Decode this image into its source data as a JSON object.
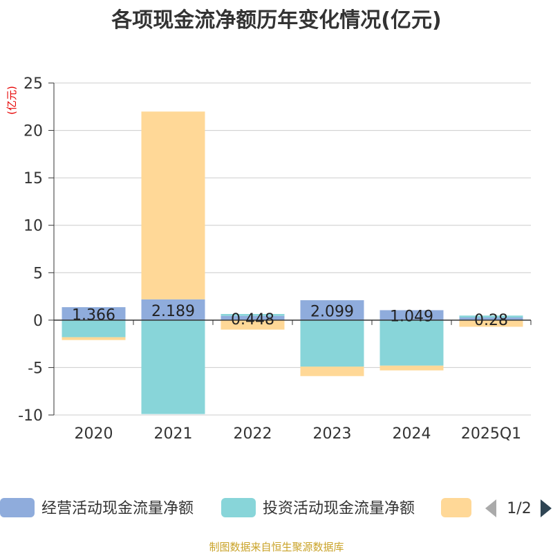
{
  "chart_data": {
    "type": "bar",
    "stacked": true,
    "title": "各项现金流净额历年变化情况(亿元)",
    "ylabel": "(亿元)",
    "categories": [
      "2020",
      "2021",
      "2022",
      "2023",
      "2024",
      "2025Q1"
    ],
    "ylim": [
      -10,
      25
    ],
    "yticks": [
      -10,
      -5,
      0,
      5,
      10,
      15,
      20,
      25
    ],
    "grid": true,
    "series": [
      {
        "name": "经营活动现金流量净额",
        "color": "#8FACDC",
        "values": [
          1.366,
          2.189,
          0.448,
          2.099,
          1.049,
          0.28
        ],
        "labels": [
          "1.366",
          "2.189",
          "0.448",
          "2.099",
          "1.049",
          "0.28"
        ]
      },
      {
        "name": "投资活动现金流量净额",
        "color": "#88D5D9",
        "values": [
          -1.8,
          -9.9,
          0.2,
          -4.9,
          -4.8,
          0.2
        ]
      },
      {
        "name": "",
        "color": "#FFD897",
        "values": [
          -0.3,
          19.8,
          -1.0,
          -1.0,
          -0.5,
          -0.7
        ]
      }
    ],
    "legend": {
      "position": "bottom",
      "page": "1/2"
    }
  },
  "footer": {
    "source": "制图数据来自恒生聚源数据库"
  }
}
